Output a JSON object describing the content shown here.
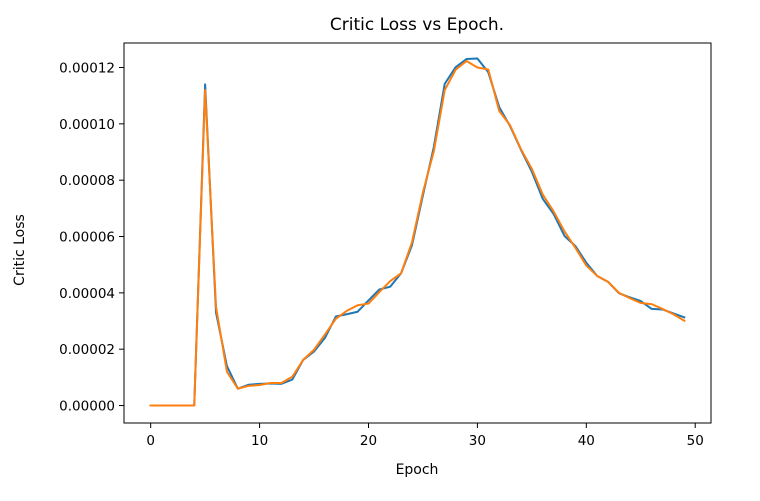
{
  "chart_data": {
    "type": "line",
    "title": "Critic Loss vs Epoch.",
    "xlabel": "Epoch",
    "ylabel": "Critic Loss",
    "xlim": [
      -2.45,
      51.45
    ],
    "ylim": [
      -6.2e-06,
      0.0001287
    ],
    "x_ticks": [
      0,
      10,
      20,
      30,
      40,
      50
    ],
    "x_tick_labels": [
      "0",
      "10",
      "20",
      "30",
      "40",
      "50"
    ],
    "y_ticks": [
      0,
      2e-05,
      4e-05,
      6e-05,
      8e-05,
      0.0001,
      0.00012
    ],
    "y_tick_labels": [
      "0.00000",
      "0.00002",
      "0.00004",
      "0.00006",
      "0.00008",
      "0.00010",
      "0.00012"
    ],
    "grid": false,
    "legend": "none",
    "x": [
      0,
      1,
      2,
      3,
      4,
      5,
      6,
      7,
      8,
      9,
      10,
      11,
      12,
      13,
      14,
      15,
      16,
      17,
      18,
      19,
      20,
      21,
      22,
      23,
      24,
      25,
      26,
      27,
      28,
      29,
      30,
      31,
      32,
      33,
      34,
      35,
      36,
      37,
      38,
      39,
      40,
      41,
      42,
      43,
      44,
      45,
      46,
      47,
      48,
      49
    ],
    "series": [
      {
        "color": "#1f77b4",
        "values": [
          0,
          0,
          0,
          0,
          0,
          0.000114,
          3.3e-05,
          1.4e-05,
          6e-06,
          7.4e-06,
          7.7e-06,
          7.8e-06,
          7.7e-06,
          9.2e-06,
          1.62e-05,
          1.92e-05,
          2.4e-05,
          3.16e-05,
          3.24e-05,
          3.33e-05,
          3.73e-05,
          4.12e-05,
          4.22e-05,
          4.7e-05,
          5.7e-05,
          7.47e-05,
          9.18e-05,
          0.0001142,
          0.0001201,
          0.000123,
          0.0001232,
          0.0001183,
          0.000106,
          9.92e-05,
          9.08e-05,
          8.3e-05,
          7.34e-05,
          6.8e-05,
          6.02e-05,
          5.66e-05,
          5.07e-05,
          4.6e-05,
          4.39e-05,
          3.99e-05,
          3.84e-05,
          3.71e-05,
          3.43e-05,
          3.41e-05,
          3.27e-05,
          3.13e-05
        ]
      },
      {
        "color": "#ff7f0e",
        "values": [
          0,
          0,
          0,
          0,
          0,
          0.000112,
          3.5e-05,
          1.2e-05,
          6e-06,
          7e-06,
          7.3e-06,
          8e-06,
          8e-06,
          1.02e-05,
          1.62e-05,
          1.98e-05,
          2.52e-05,
          3.08e-05,
          3.36e-05,
          3.56e-05,
          3.62e-05,
          4.03e-05,
          4.42e-05,
          4.7e-05,
          5.8e-05,
          7.57e-05,
          9.03e-05,
          0.000112,
          0.0001192,
          0.0001223,
          0.00012,
          0.0001193,
          0.0001046,
          9.95e-05,
          9.1e-05,
          8.4e-05,
          7.49e-05,
          6.89e-05,
          6.18e-05,
          5.6e-05,
          4.97e-05,
          4.6e-05,
          4.39e-05,
          4e-05,
          3.81e-05,
          3.64e-05,
          3.6e-05,
          3.43e-05,
          3.24e-05,
          3.01e-05
        ]
      }
    ]
  }
}
